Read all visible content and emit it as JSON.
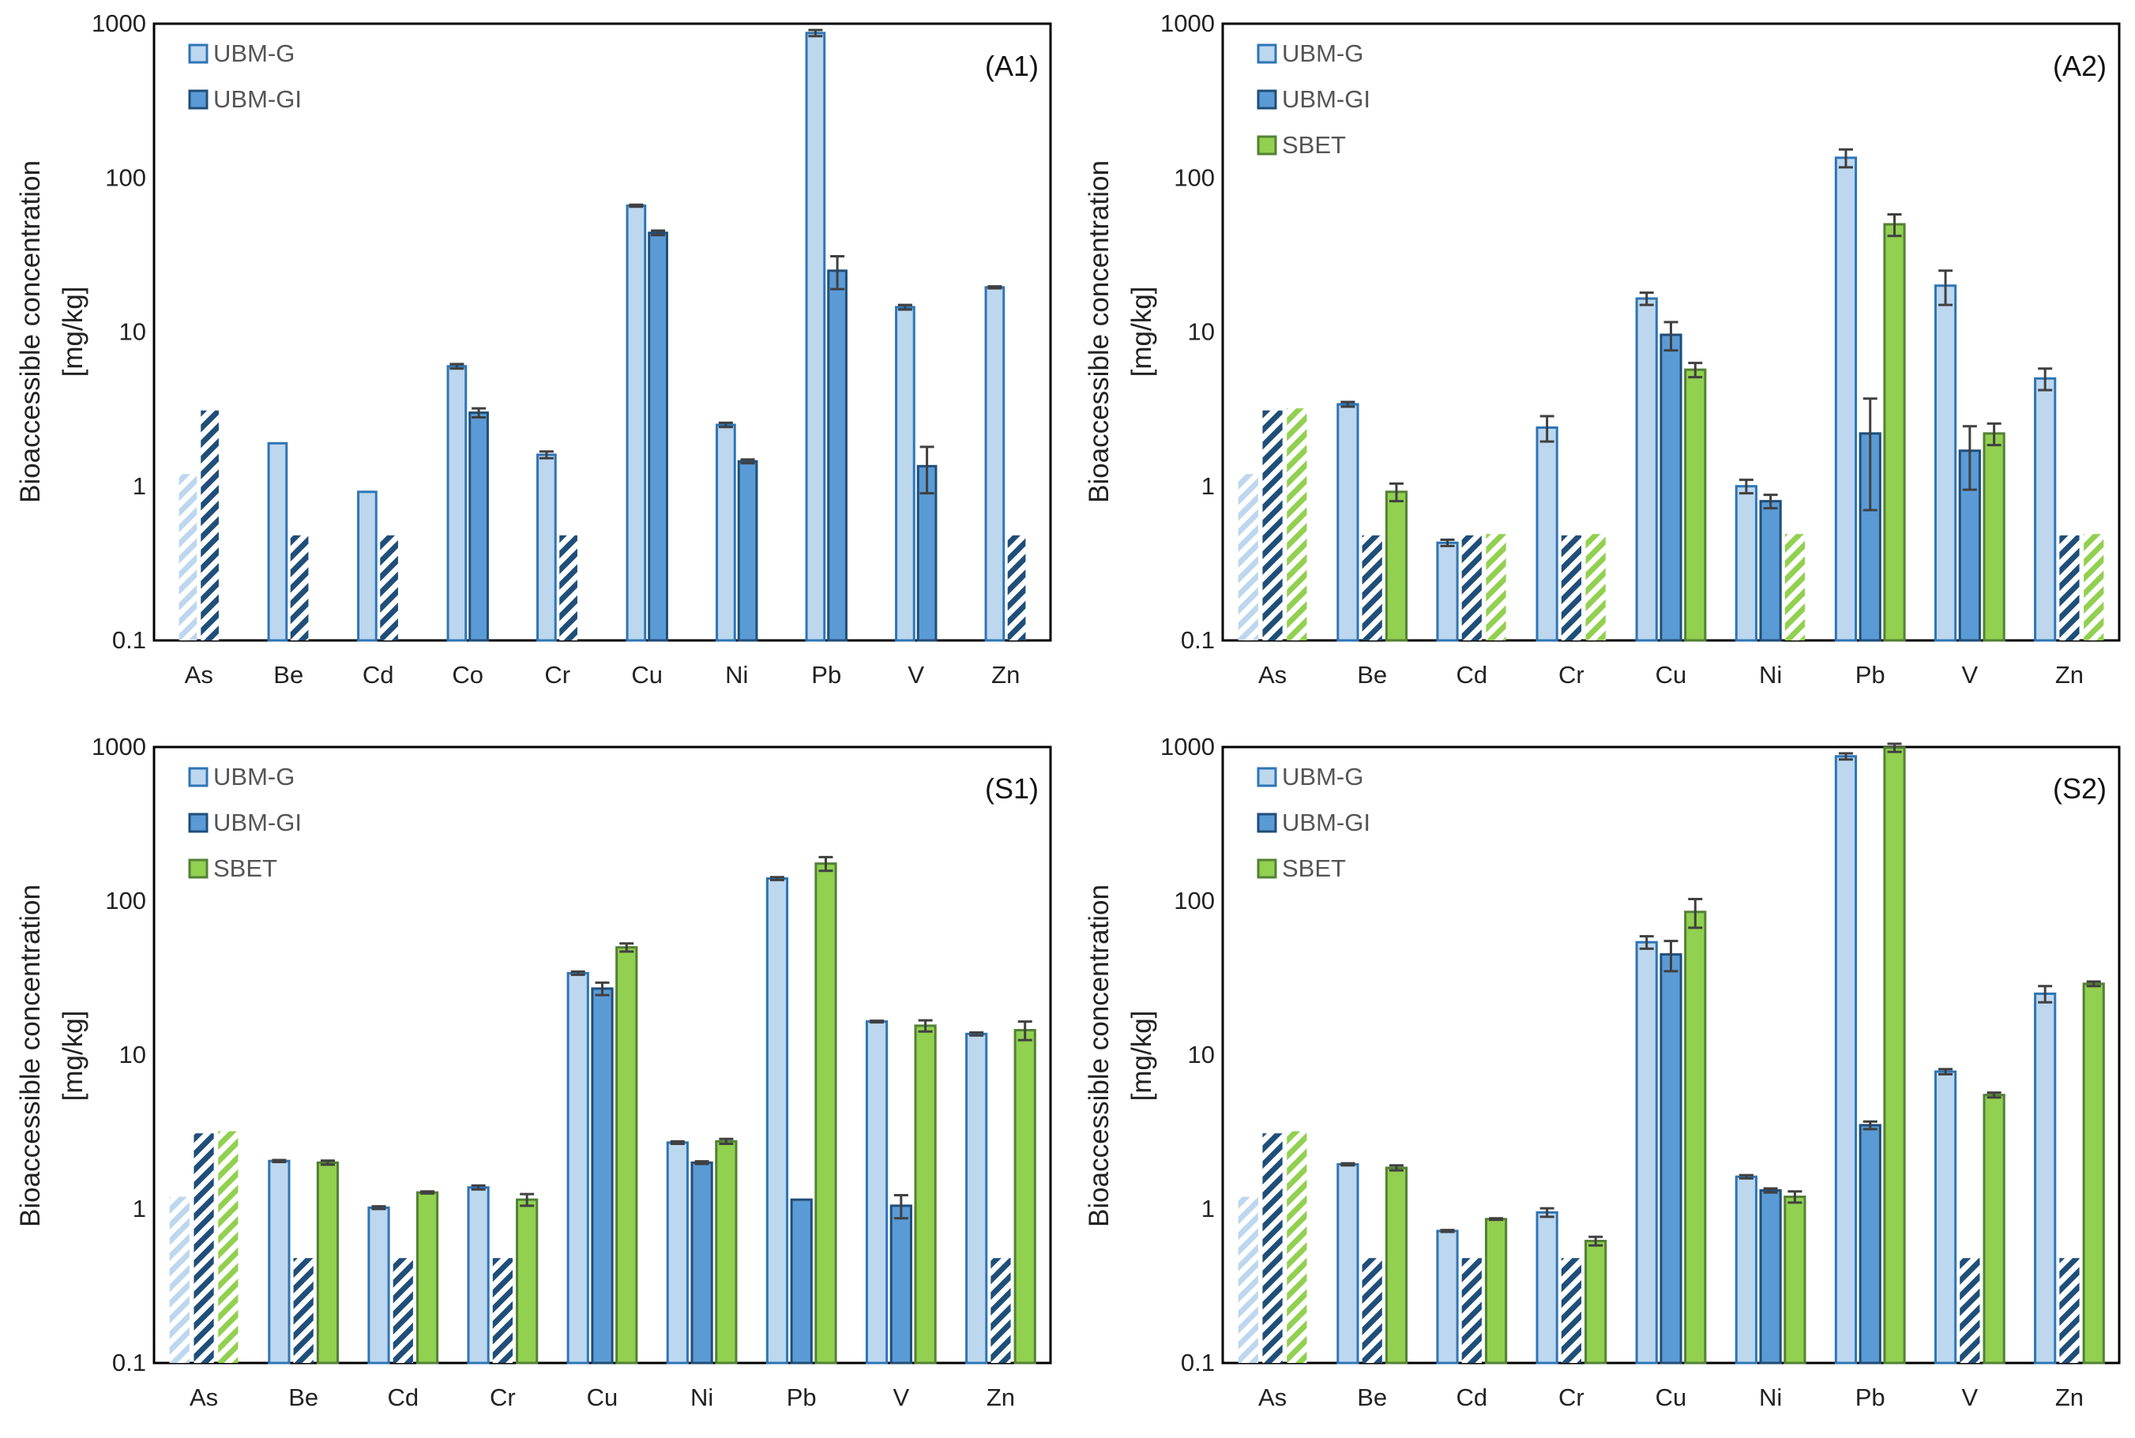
{
  "colors": {
    "ubmg_fill": "#bdd7ee",
    "ubmg_stroke": "#2e75b6",
    "ubmgi_fill": "#5b9bd5",
    "ubmgi_stroke": "#1f4e79",
    "sbet_fill": "#92d050",
    "sbet_stroke": "#538135",
    "error": "#404040",
    "axis": "#000000"
  },
  "chart_data": [
    {
      "type": "bar",
      "title": "(A1)",
      "ylabel": "Bioaccessible concentration [mg/kg]",
      "ylabel_lines": [
        "Bioaccessible concentration",
        "[mg/kg]"
      ],
      "yscale": "log",
      "ylim": [
        0.1,
        1000
      ],
      "yticks": [
        "0.1",
        "1",
        "10",
        "100",
        "1000"
      ],
      "legend": "top-left",
      "categories": [
        "As",
        "Be",
        "Cd",
        "Co",
        "Cr",
        "Cu",
        "Ni",
        "Pb",
        "V",
        "Zn"
      ],
      "series": [
        {
          "name": "UBM-G",
          "values": [
            1.2,
            1.9,
            0.92,
            6.0,
            1.6,
            66,
            2.5,
            870,
            14.5,
            19.5
          ],
          "errors": [
            0,
            0,
            0,
            0.2,
            0.08,
            1,
            0.08,
            40,
            0.5,
            0.3
          ],
          "below_lod": [
            true,
            false,
            false,
            false,
            false,
            false,
            false,
            false,
            false,
            false
          ]
        },
        {
          "name": "UBM-GI",
          "values": [
            3.1,
            0.48,
            0.48,
            3.0,
            0.48,
            44,
            1.45,
            25,
            1.35,
            0.48
          ],
          "errors": [
            0,
            0,
            0,
            0.2,
            0,
            1.5,
            0.04,
            6,
            0.45,
            0
          ],
          "below_lod": [
            true,
            true,
            true,
            false,
            true,
            false,
            false,
            false,
            false,
            true
          ]
        }
      ]
    },
    {
      "type": "bar",
      "title": "(A2)",
      "ylabel": "Bioaccessible concentration [mg/kg]",
      "ylabel_lines": [
        "Bioaccessible concentration",
        "[mg/kg]"
      ],
      "yscale": "log",
      "ylim": [
        0.1,
        1000
      ],
      "yticks": [
        "0.1",
        "1",
        "10",
        "100",
        "1000"
      ],
      "legend": "top-left",
      "categories": [
        "As",
        "Be",
        "Cd",
        "Cr",
        "Cu",
        "Ni",
        "Pb",
        "V",
        "Zn"
      ],
      "series": [
        {
          "name": "UBM-G",
          "values": [
            1.2,
            3.4,
            0.43,
            2.4,
            16.5,
            1.0,
            135,
            20,
            5.0
          ],
          "errors": [
            0,
            0.12,
            0.02,
            0.45,
            1.5,
            0.1,
            18,
            5,
            0.8
          ],
          "below_lod": [
            true,
            false,
            false,
            false,
            false,
            false,
            false,
            false,
            false
          ]
        },
        {
          "name": "UBM-GI",
          "values": [
            3.1,
            0.48,
            0.48,
            0.48,
            9.6,
            0.8,
            2.2,
            1.7,
            0.48
          ],
          "errors": [
            0,
            0,
            0,
            0,
            2.0,
            0.08,
            1.5,
            0.75,
            0
          ],
          "below_lod": [
            true,
            true,
            true,
            true,
            false,
            false,
            false,
            false,
            true
          ]
        },
        {
          "name": "SBET",
          "values": [
            3.2,
            0.92,
            0.49,
            0.49,
            5.7,
            0.49,
            50,
            2.2,
            0.49
          ],
          "errors": [
            0,
            0.12,
            0,
            0,
            0.6,
            0,
            8,
            0.35,
            0
          ],
          "below_lod": [
            true,
            false,
            true,
            true,
            false,
            true,
            false,
            false,
            true
          ]
        }
      ]
    },
    {
      "type": "bar",
      "title": "(S1)",
      "ylabel": "Bioaccessible concentration [mg/kg]",
      "ylabel_lines": [
        "Bioaccessible concentration",
        "[mg/kg]"
      ],
      "yscale": "log",
      "ylim": [
        0.1,
        1000
      ],
      "yticks": [
        "0.1",
        "1",
        "10",
        "100",
        "1000"
      ],
      "legend": "top-left",
      "categories": [
        "As",
        "Be",
        "Cd",
        "Cr",
        "Cu",
        "Ni",
        "Pb",
        "V",
        "Zn"
      ],
      "series": [
        {
          "name": "UBM-G",
          "values": [
            1.2,
            2.05,
            1.02,
            1.38,
            34,
            2.7,
            140,
            16.5,
            13.7
          ],
          "errors": [
            0,
            0.03,
            0.02,
            0.04,
            0.8,
            0.05,
            3,
            0.2,
            0.3
          ],
          "below_lod": [
            true,
            false,
            false,
            false,
            false,
            false,
            false,
            false,
            false
          ]
        },
        {
          "name": "UBM-GI",
          "values": [
            3.1,
            0.48,
            0.48,
            0.48,
            27,
            2.0,
            1.15,
            1.05,
            0.48
          ],
          "errors": [
            0,
            0,
            0,
            0,
            2.5,
            0.04,
            0,
            0.18,
            0
          ],
          "below_lod": [
            true,
            true,
            true,
            true,
            false,
            false,
            false,
            false,
            true
          ]
        },
        {
          "name": "SBET",
          "values": [
            3.2,
            2.0,
            1.28,
            1.15,
            50,
            2.75,
            175,
            15.5,
            14.5
          ],
          "errors": [
            0,
            0.06,
            0.02,
            0.1,
            3,
            0.1,
            18,
            1.3,
            2.0
          ],
          "below_lod": [
            true,
            false,
            false,
            false,
            false,
            false,
            false,
            false,
            false
          ]
        }
      ]
    },
    {
      "type": "bar",
      "title": "(S2)",
      "ylabel": "Bioaccessible concentration [mg/kg]",
      "ylabel_lines": [
        "Bioaccessible concentration",
        "[mg/kg]"
      ],
      "yscale": "log",
      "ylim": [
        0.1,
        1000
      ],
      "yticks": [
        "0.1",
        "1",
        "10",
        "100",
        "1000"
      ],
      "legend": "top-left",
      "categories": [
        "As",
        "Be",
        "Cd",
        "Cr",
        "Cu",
        "Ni",
        "Pb",
        "V",
        "Zn"
      ],
      "series": [
        {
          "name": "UBM-G",
          "values": [
            1.2,
            1.95,
            0.72,
            0.95,
            54,
            1.62,
            870,
            7.8,
            25
          ],
          "errors": [
            0,
            0.03,
            0.01,
            0.06,
            5,
            0.04,
            40,
            0.3,
            3
          ],
          "below_lod": [
            true,
            false,
            false,
            false,
            false,
            false,
            false,
            false,
            false
          ]
        },
        {
          "name": "UBM-GI",
          "values": [
            3.1,
            0.48,
            0.48,
            0.48,
            45,
            1.32,
            3.5,
            0.48,
            0.48
          ],
          "errors": [
            0,
            0,
            0,
            0,
            10,
            0.04,
            0.2,
            0,
            0
          ],
          "below_lod": [
            true,
            true,
            true,
            true,
            false,
            false,
            false,
            true,
            true
          ]
        },
        {
          "name": "SBET",
          "values": [
            3.2,
            1.85,
            0.86,
            0.62,
            85,
            1.2,
            990,
            5.5,
            29
          ],
          "errors": [
            0,
            0.07,
            0.01,
            0.04,
            18,
            0.1,
            60,
            0.2,
            1
          ],
          "below_lod": [
            true,
            false,
            false,
            false,
            false,
            false,
            false,
            false,
            false
          ]
        }
      ]
    }
  ]
}
